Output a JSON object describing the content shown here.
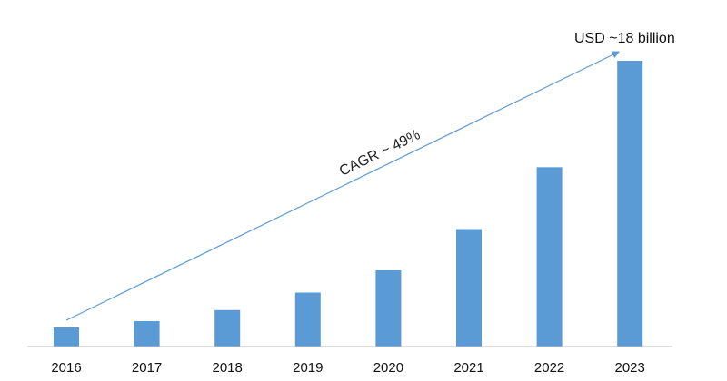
{
  "chart_data": {
    "type": "bar",
    "categories": [
      "2016",
      "2017",
      "2018",
      "2019",
      "2020",
      "2021",
      "2022",
      "2023"
    ],
    "values": [
      1.2,
      1.6,
      2.3,
      3.4,
      4.8,
      7.4,
      11.3,
      18.0
    ],
    "ylim": [
      0,
      18.0
    ],
    "grid": false,
    "bar_color": "#5B9BD5",
    "annotations": {
      "end_value": "USD ~18 billion",
      "cagr": "CAGR ~ 49%"
    }
  }
}
